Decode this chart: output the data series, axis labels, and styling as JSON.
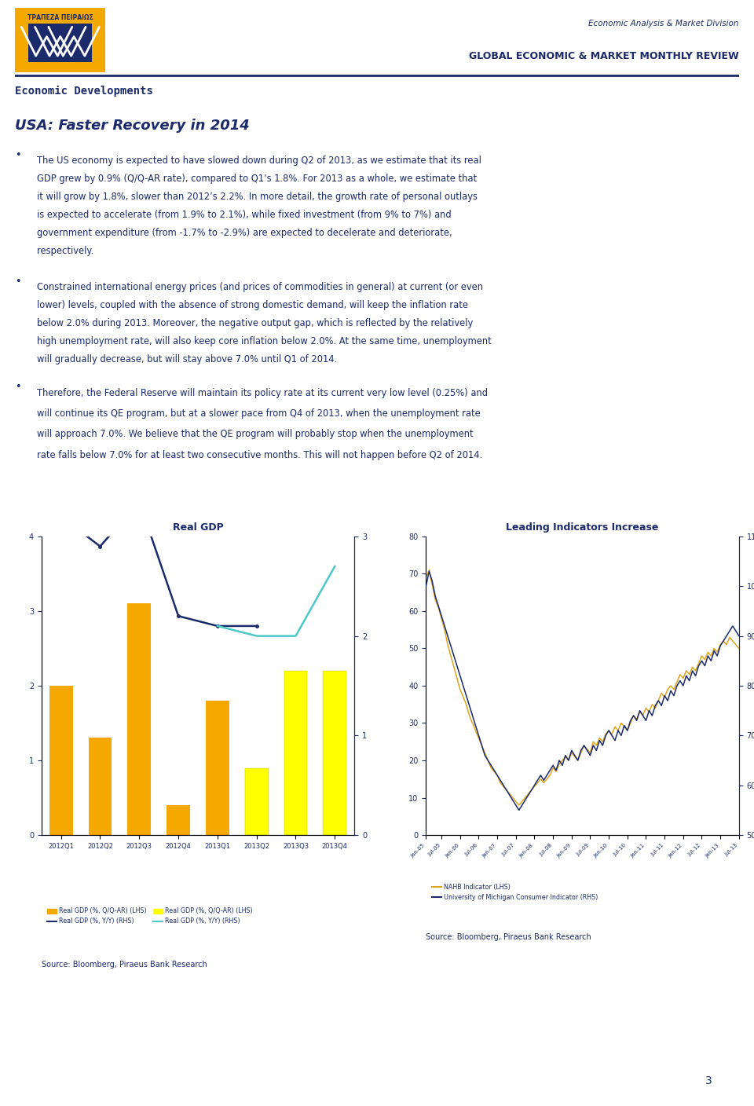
{
  "header_text_right1": "Economic Analysis & Market Division",
  "header_text_right2": "GLOBAL ECONOMIC & MARKET MONTHLY REVIEW",
  "header_left": "Economic Developments",
  "page_title": "USA: Faster Recovery in 2014",
  "bullet1_lines": [
    "The US economy is expected to have slowed down during Q2 of 2013, as we estimate that its real",
    "GDP grew by 0.9% (Q/Q-AR rate), compared to Q1’s 1.8%. For 2013 as a whole, we estimate that",
    "it will grow by 1.8%, slower than 2012’s 2.2%. In more detail, the growth rate of personal outlays",
    "is expected to accelerate (from 1.9% to 2.1%), while fixed investment (from 9% to 7%) and",
    "government expenditure (from -1.7% to -2.9%) are expected to decelerate and deteriorate,",
    "respectively."
  ],
  "bullet2_lines": [
    "Constrained international energy prices (and prices of commodities in general) at current (or even",
    "lower) levels, coupled with the absence of strong domestic demand, will keep the inflation rate",
    "below 2.0% during 2013. Moreover, the negative output gap, which is reflected by the relatively",
    "high unemployment rate, will also keep core inflation below 2.0%. At the same time, unemployment",
    "will gradually decrease, but will stay above 7.0% until Q1 of 2014."
  ],
  "bullet3_lines": [
    "Therefore, the Federal Reserve will maintain its policy rate at its current very low level (0.25%) and",
    "will continue its QE program, but at a slower pace from Q4 of 2013, when the unemployment rate",
    "will approach 7.0%. We believe that the QE program will probably stop when the unemployment",
    "rate falls below 7.0% for at least two consecutive months. This will not happen before Q2 of 2014."
  ],
  "chart1_title": "Real GDP",
  "chart1_categories": [
    "2012Q1",
    "2012Q2",
    "2012Q3",
    "2012Q4",
    "2013Q1",
    "2013Q2",
    "2013Q3",
    "2013Q4"
  ],
  "chart1_bar_orange": [
    2.0,
    1.3,
    3.1,
    0.4,
    1.8,
    null,
    null,
    null
  ],
  "chart1_bar_yellow": [
    null,
    null,
    null,
    null,
    null,
    0.9,
    2.2,
    2.2
  ],
  "chart1_line_navy": [
    3.2,
    2.9,
    3.35,
    2.2,
    2.1,
    2.1,
    null,
    null
  ],
  "chart1_line_cyan": [
    null,
    null,
    null,
    null,
    2.1,
    2.0,
    2.0,
    2.7
  ],
  "chart1_legend1": "Real GDP (%, Q/Q-AR) (LHS)",
  "chart1_legend2": "Real GDP (%, Y/Y) (RHS)",
  "chart1_legend3": "Real GDP (%, Q/Q-AR) (LHS)",
  "chart1_legend4": "Real GDP (%, Y/Y) (RHS)",
  "chart2_title": "Leading Indicators Increase",
  "chart2_legend1": "NAHB Indicator (LHS)",
  "chart2_legend2": "University of Michigan Consumer Indicator (RHS)",
  "nahb_data": [
    69,
    71,
    67,
    63,
    61,
    58,
    55,
    51,
    48,
    45,
    42,
    39,
    37,
    35,
    32,
    30,
    28,
    26,
    24,
    22,
    20,
    18,
    17,
    16,
    14,
    13,
    12,
    11,
    10,
    9,
    8,
    9,
    10,
    11,
    12,
    13,
    14,
    15,
    14,
    15,
    16,
    18,
    17,
    19,
    20,
    21,
    20,
    22,
    21,
    20,
    22,
    24,
    23,
    22,
    25,
    24,
    26,
    25,
    27,
    28,
    27,
    29,
    28,
    30,
    29,
    28,
    30,
    32,
    31,
    33,
    32,
    34,
    33,
    35,
    34,
    36,
    38,
    37,
    39,
    40,
    39,
    41,
    43,
    42,
    44,
    43,
    45,
    44,
    46,
    48,
    47,
    49,
    48,
    50,
    49,
    51,
    52,
    51,
    53,
    52,
    51,
    50
  ],
  "uom_data": [
    100,
    103,
    101,
    98,
    96,
    94,
    92,
    90,
    88,
    86,
    84,
    82,
    80,
    78,
    76,
    74,
    72,
    70,
    68,
    66,
    65,
    64,
    63,
    62,
    61,
    60,
    59,
    58,
    57,
    56,
    55,
    56,
    57,
    58,
    59,
    60,
    61,
    62,
    61,
    62,
    63,
    64,
    63,
    65,
    64,
    66,
    65,
    67,
    66,
    65,
    67,
    68,
    67,
    66,
    68,
    67,
    69,
    68,
    70,
    71,
    70,
    69,
    71,
    70,
    72,
    71,
    73,
    74,
    73,
    75,
    74,
    73,
    75,
    74,
    76,
    77,
    76,
    78,
    77,
    79,
    78,
    80,
    81,
    80,
    82,
    81,
    83,
    82,
    84,
    85,
    84,
    86,
    85,
    87,
    86,
    88,
    89,
    90,
    91,
    92,
    91,
    90
  ],
  "nahb_xlabels": [
    "Jan-05",
    "Jul-05",
    "Jan-06",
    "Jul-06",
    "Jan-07",
    "Jul-07",
    "Jan-08",
    "Jul-08",
    "Jan-09",
    "Jul-09",
    "Jan-10",
    "Jul-10",
    "Jan-11",
    "Jul-11",
    "Jan-12",
    "Jul-12",
    "Jan-13",
    "Jul-13"
  ],
  "source_text": "Source: Bloomberg, Piraeus Bank Research",
  "page_number": "3",
  "logo_bg": "#F5A800",
  "navy_color": "#1B2A6B",
  "orange_color": "#F5A800",
  "yellow_color": "#FFFF00",
  "cyan_color": "#4DC8C8",
  "gold_color": "#DAA520",
  "text_color": "#1B2A6B"
}
